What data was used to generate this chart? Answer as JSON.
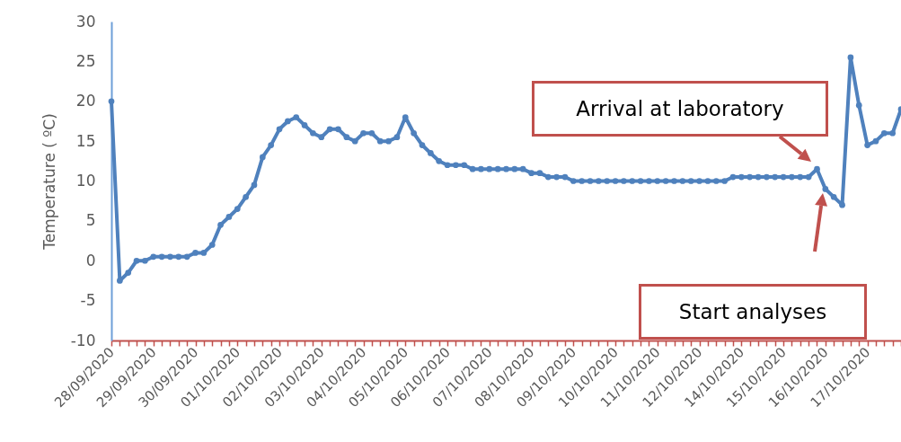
{
  "chart_data": {
    "type": "line",
    "ylabel": "Temperature ( ºC)",
    "color": "#4f81bd",
    "marker": "circle",
    "categories": [
      "28/09/2020",
      null,
      null,
      null,
      null,
      "29/09/2020",
      null,
      null,
      null,
      null,
      "30/09/2020",
      null,
      null,
      null,
      null,
      "01/10/2020",
      null,
      null,
      null,
      null,
      "02/10/2020",
      null,
      null,
      null,
      null,
      "03/10/2020",
      null,
      null,
      null,
      null,
      "04/10/2020",
      null,
      null,
      null,
      null,
      "05/10/2020",
      null,
      null,
      null,
      null,
      "06/10/2020",
      null,
      null,
      null,
      null,
      "07/10/2020",
      null,
      null,
      null,
      null,
      "08/10/2020",
      null,
      null,
      null,
      null,
      "09/10/2020",
      null,
      null,
      null,
      null,
      "10/10/2020",
      null,
      null,
      null,
      null,
      "11/10/2020",
      null,
      null,
      null,
      null,
      "12/10/2020",
      null,
      null,
      null,
      null,
      "14/10/2020",
      null,
      null,
      null,
      null,
      "15/10/2020",
      null,
      null,
      null,
      null,
      "16/10/2020",
      null,
      null,
      null,
      null,
      "17/10/2020",
      null,
      null,
      null,
      null
    ],
    "values": [
      20,
      -2.5,
      -1.5,
      0,
      0,
      0.5,
      0.5,
      0.5,
      0.5,
      0.5,
      1,
      1,
      2,
      4.5,
      5.5,
      6.5,
      8,
      9.5,
      13,
      14.5,
      16.5,
      17.5,
      18,
      17,
      16,
      15.5,
      16.5,
      16.5,
      15.5,
      15,
      16,
      16,
      15,
      15,
      15.5,
      18,
      16,
      14.5,
      13.5,
      12.5,
      12,
      12,
      12,
      11.5,
      11.5,
      11.5,
      11.5,
      11.5,
      11.5,
      11.5,
      11,
      11,
      10.5,
      10.5,
      10.5,
      10,
      10,
      10,
      10,
      10,
      10,
      10,
      10,
      10,
      10,
      10,
      10,
      10,
      10,
      10,
      10,
      10,
      10,
      10,
      10.5,
      10.5,
      10.5,
      10.5,
      10.5,
      10.5,
      10.5,
      10.5,
      10.5,
      10.5,
      11.5,
      9,
      8,
      7,
      25.5,
      19.5,
      14.5,
      15,
      16,
      16,
      19
    ],
    "ylim": [
      -10,
      30
    ],
    "yticks": [
      -10,
      -5,
      0,
      5,
      10,
      15,
      20,
      25,
      30
    ],
    "annotations": [
      "Arrival at laboratory",
      "Start analyses"
    ]
  }
}
